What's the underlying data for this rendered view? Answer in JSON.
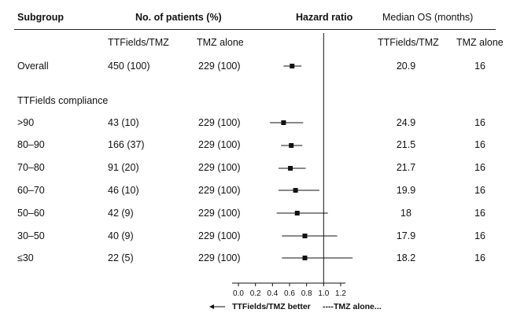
{
  "headers": {
    "subgroup": "Subgroup",
    "patients": "No. of patients (%)",
    "hazard_ratio": "Hazard ratio",
    "median_os": "Median OS (months)",
    "ttfields_tmz": "TTFields/TMZ",
    "tmz_alone": "TMZ alone",
    "os_ttfields_tmz": "TTFields/TMZ",
    "os_tmz_alone": "TMZ alone"
  },
  "section_label": "TTFields compliance",
  "rows": [
    {
      "label": "Overall",
      "n_ttf": "450 (100)",
      "n_tmz": "229 (100)",
      "os_ttf": "20.9",
      "os_tmz": "16"
    },
    {
      "label": ">90",
      "n_ttf": "43 (10)",
      "n_tmz": "229 (100)",
      "os_ttf": "24.9",
      "os_tmz": "16"
    },
    {
      "label": "80–90",
      "n_ttf": "166 (37)",
      "n_tmz": "229 (100)",
      "os_ttf": "21.5",
      "os_tmz": "16"
    },
    {
      "label": "70–80",
      "n_ttf": "91 (20)",
      "n_tmz": "229 (100)",
      "os_ttf": "21.7",
      "os_tmz": "16"
    },
    {
      "label": "60–70",
      "n_ttf": "46 (10)",
      "n_tmz": "229 (100)",
      "os_ttf": "19.9",
      "os_tmz": "16"
    },
    {
      "label": "50–60",
      "n_ttf": "42 (9)",
      "n_tmz": "229 (100)",
      "os_ttf": "18",
      "os_tmz": "16"
    },
    {
      "label": "30–50",
      "n_ttf": "40 (9)",
      "n_tmz": "229 (100)",
      "os_ttf": "17.9",
      "os_tmz": "16"
    },
    {
      "label": "≤30",
      "n_ttf": "22 (5)",
      "n_tmz": "229 (100)",
      "os_ttf": "18.2",
      "os_tmz": "16"
    }
  ],
  "footer": {
    "left_arrow_label": "TTFields/TMZ better",
    "right_label": "----TMZ alone..."
  },
  "chart_data": {
    "type": "forest",
    "x_axis": {
      "min": 0.0,
      "max": 1.2,
      "ticks": [
        "0.0",
        "0.2",
        "0.4",
        "0.6",
        "0.8",
        "1.0",
        "1.2"
      ],
      "reference_line": 1.0
    },
    "grid": false,
    "points": [
      {
        "label": "Overall",
        "hr": 0.63,
        "lo": 0.53,
        "hi": 0.74
      },
      {
        "label": ">90",
        "hr": 0.53,
        "lo": 0.37,
        "hi": 0.76
      },
      {
        "label": "80–90",
        "hr": 0.62,
        "lo": 0.5,
        "hi": 0.75
      },
      {
        "label": "70–80",
        "hr": 0.61,
        "lo": 0.47,
        "hi": 0.79
      },
      {
        "label": "60–70",
        "hr": 0.67,
        "lo": 0.47,
        "hi": 0.95
      },
      {
        "label": "50–60",
        "hr": 0.69,
        "lo": 0.45,
        "hi": 1.05
      },
      {
        "label": "30–50",
        "hr": 0.78,
        "lo": 0.51,
        "hi": 1.16
      },
      {
        "label": "≤30",
        "hr": 0.78,
        "lo": 0.51,
        "hi": 1.34
      }
    ]
  }
}
